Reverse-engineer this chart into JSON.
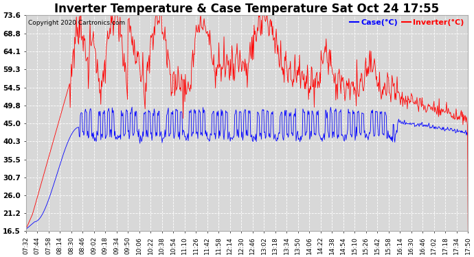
{
  "title": "Inverter Temperature & Case Temperature Sat Oct 24 17:55",
  "legend_labels": [
    "Case(°C)",
    "Inverter(°C)"
  ],
  "legend_colors": [
    "blue",
    "red"
  ],
  "copyright": "Copyright 2020 Cartronics.com",
  "y_ticks": [
    16.5,
    21.2,
    26.0,
    30.7,
    35.5,
    40.3,
    45.0,
    49.8,
    54.5,
    59.3,
    64.1,
    68.8,
    73.6
  ],
  "ylim": [
    16.5,
    73.6
  ],
  "x_labels": [
    "07:32",
    "07:44",
    "07:58",
    "08:14",
    "08:30",
    "08:46",
    "09:02",
    "09:18",
    "09:34",
    "09:50",
    "10:06",
    "10:22",
    "10:38",
    "10:54",
    "11:10",
    "11:26",
    "11:42",
    "11:58",
    "12:14",
    "12:30",
    "12:46",
    "13:02",
    "13:18",
    "13:34",
    "13:50",
    "14:06",
    "14:22",
    "14:38",
    "14:54",
    "15:10",
    "15:26",
    "15:42",
    "15:58",
    "16:14",
    "16:30",
    "16:46",
    "17:02",
    "17:18",
    "17:34",
    "17:50"
  ],
  "bg_color": "#ffffff",
  "plot_bg_color": "#d8d8d8",
  "grid_color": "#ffffff",
  "title_fontsize": 12,
  "case_color": "blue",
  "inverter_color": "red"
}
